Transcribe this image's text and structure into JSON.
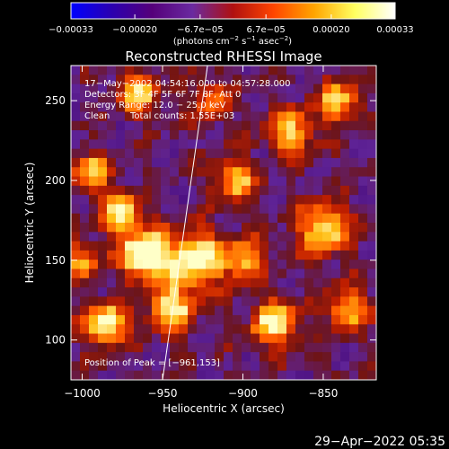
{
  "chart_data": {
    "type": "heatmap",
    "title": "Reconstructed RHESSI Image",
    "xlabel": "Heliocentric X (arcsec)",
    "ylabel": "Heliocentric Y (arcsec)",
    "xlim": [
      -1007,
      -817
    ],
    "ylim": [
      75,
      272
    ],
    "x_ticks": [
      {
        "value": -1000,
        "label": "−1000"
      },
      {
        "value": -950,
        "label": "−950"
      },
      {
        "value": -900,
        "label": "−900"
      },
      {
        "value": -850,
        "label": "−850"
      }
    ],
    "y_ticks": [
      {
        "value": 100,
        "label": "100"
      },
      {
        "value": 150,
        "label": "150"
      },
      {
        "value": 200,
        "label": "200"
      },
      {
        "value": 250,
        "label": "250"
      }
    ],
    "colorbar": {
      "range": [
        -0.00033,
        0.00033
      ],
      "ticks": [
        {
          "value": -0.00033,
          "label": "−0.00033"
        },
        {
          "value": -0.0002,
          "label": "−0.00020"
        },
        {
          "value": -6.7e-05,
          "label": "−6.7e−05"
        },
        {
          "value": 6.7e-05,
          "label": "6.7e−05"
        },
        {
          "value": 0.0002,
          "label": "0.00020"
        },
        {
          "value": 0.00033,
          "label": "0.00033"
        }
      ],
      "units_main": "(photons cm",
      "units_exp1": "−2",
      "units_mid1": " s",
      "units_exp2": "−1",
      "units_mid2": " asec",
      "units_exp3": "−2",
      "units_end": ")",
      "colors": [
        "#0000ff",
        "#2b00b0",
        "#55007a",
        "#6a2aa0",
        "#b01010",
        "#ff4500",
        "#ffa500",
        "#ffff60",
        "#ffffff"
      ]
    },
    "annotations": {
      "time": "17−May−2002 04:54:16.000 to 04:57:28.000",
      "detectors": "Detectors: 3F 4F 5F 6F 7F 8F, Att 0",
      "energy": "Energy Range: 12.0 − 25.0 keV",
      "algorithm": "Clean",
      "counts": "Total counts: 1.55E+03",
      "peak": "Position of Peak = [−961,153]"
    },
    "limb_line": {
      "x1": -950,
      "y1": 75,
      "x2": -922,
      "y2": 272
    },
    "peak": {
      "x": -961,
      "y": 153
    }
  },
  "footer": {
    "timestamp": "29−Apr−2022 05:35"
  }
}
